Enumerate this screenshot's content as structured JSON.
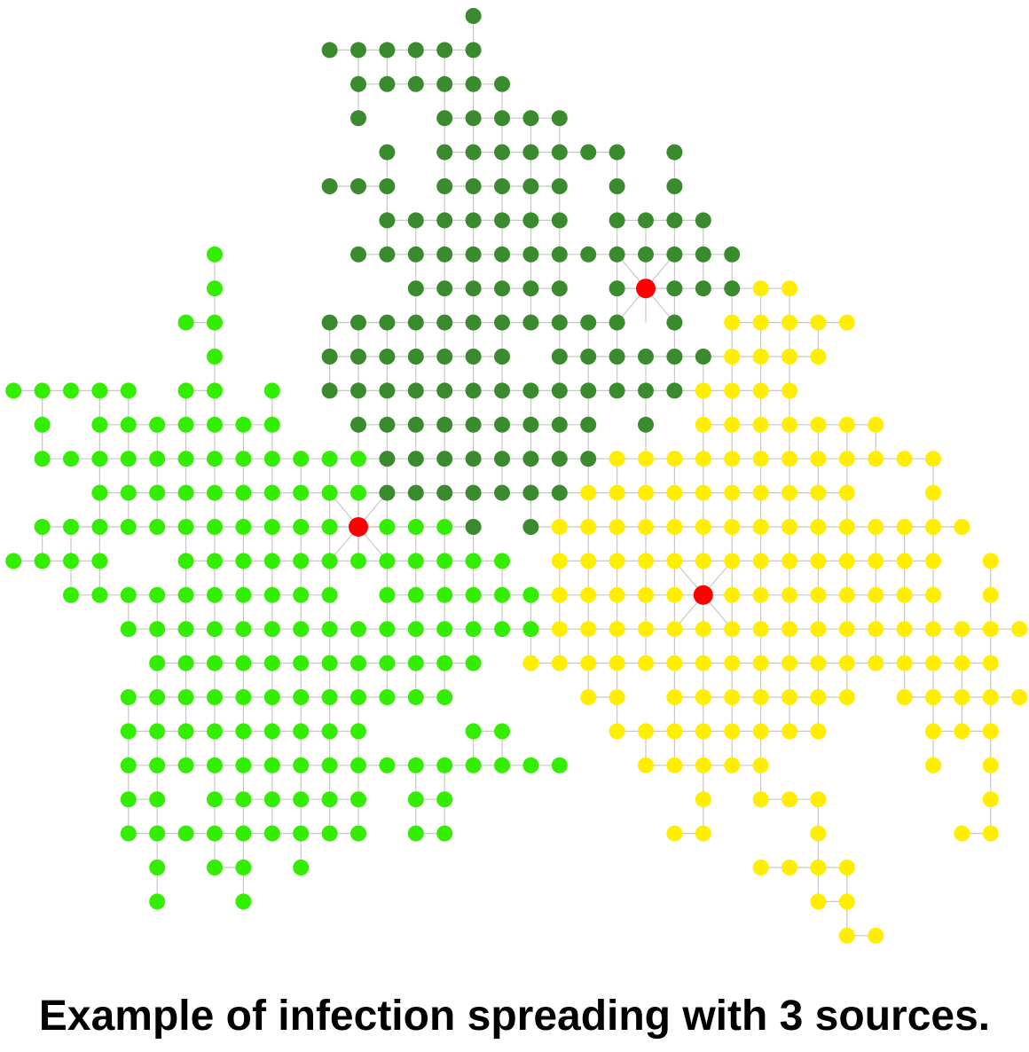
{
  "caption": "Example of infection spreading with 3 sources.",
  "colors": {
    "source": "#ff0000",
    "cluster_dark_green": "#3a8a2e",
    "cluster_light_green": "#33ee00",
    "cluster_yellow": "#ffee00",
    "edge": "#c8c8c8"
  },
  "clusters": [
    {
      "color_key": "cluster_dark_green",
      "source": [
        8,
        10
      ],
      "rows": {
        "0": [
          4
        ],
        "1": [
          -1,
          0,
          1,
          2,
          3,
          4
        ],
        "2": [
          0,
          1,
          2,
          3,
          4,
          5
        ],
        "3": [
          0,
          3,
          4,
          5,
          6,
          7
        ],
        "4": [
          1,
          3,
          4,
          5,
          6,
          7,
          8,
          9,
          11
        ],
        "5": [
          -1,
          0,
          1,
          3,
          4,
          5,
          6,
          7,
          9,
          11
        ],
        "6": [
          1,
          2,
          3,
          4,
          5,
          6,
          7,
          9,
          10,
          11,
          12
        ],
        "7": [
          0,
          1,
          2,
          3,
          4,
          5,
          6,
          7,
          8,
          9,
          10,
          11,
          12,
          13
        ],
        "8": [
          2,
          3,
          4,
          5,
          6,
          7,
          9,
          10,
          11,
          12,
          13
        ],
        "9": [
          -1,
          0,
          1,
          2,
          3,
          4,
          5,
          6,
          7,
          8,
          9,
          11
        ],
        "10": [
          -1,
          0,
          1,
          2,
          3,
          4,
          5,
          7,
          8,
          9,
          10,
          11,
          12
        ],
        "11": [
          -1,
          0,
          1,
          2,
          3,
          4,
          5,
          6,
          7,
          8,
          9,
          10,
          11
        ],
        "12": [
          0,
          1,
          2,
          3,
          4,
          5,
          6,
          7,
          8,
          10
        ],
        "13": [
          1,
          2,
          3,
          4,
          5,
          6,
          7,
          8
        ],
        "14": [
          1,
          2,
          3,
          4,
          5,
          6,
          7
        ],
        "15": [
          3,
          4,
          6
        ]
      }
    },
    {
      "color_key": "cluster_light_green",
      "source": [
        15,
        0
      ],
      "rows": {
        "7": [
          -5
        ],
        "8": [
          -5
        ],
        "9": [
          -6,
          -5
        ],
        "10": [
          -5
        ],
        "11": [
          -12,
          -11,
          -10,
          -9,
          -8,
          -6,
          -5,
          -3
        ],
        "12": [
          -11,
          -9,
          -8,
          -7,
          -6,
          -5,
          -4,
          -3
        ],
        "13": [
          -11,
          -10,
          -9,
          -8,
          -7,
          -6,
          -5,
          -4,
          -3,
          -2,
          -1,
          0
        ],
        "14": [
          -9,
          -8,
          -7,
          -6,
          -5,
          -4,
          -3,
          -2,
          -1,
          0
        ],
        "15": [
          -11,
          -10,
          -9,
          -8,
          -7,
          -6,
          -5,
          -4,
          -3,
          -2,
          -1,
          0,
          1,
          2,
          3
        ],
        "16": [
          -12,
          -11,
          -10,
          -9,
          -6,
          -5,
          -4,
          -3,
          -2,
          -1,
          0,
          1,
          2,
          3,
          4,
          5
        ],
        "17": [
          -10,
          -9,
          -8,
          -7,
          -6,
          -5,
          -4,
          -3,
          -2,
          -1,
          1,
          2,
          3,
          4,
          5,
          6
        ],
        "18": [
          -8,
          -7,
          -6,
          -5,
          -4,
          -3,
          -2,
          -1,
          0,
          1,
          2,
          3,
          4,
          5,
          6
        ],
        "19": [
          -7,
          -6,
          -5,
          -4,
          -3,
          -2,
          -1,
          0,
          1,
          2,
          3,
          4
        ],
        "20": [
          -8,
          -7,
          -6,
          -5,
          -4,
          -3,
          -2,
          -1,
          0,
          1,
          2,
          3
        ],
        "21": [
          -8,
          -7,
          -6,
          -5,
          -4,
          -3,
          -2,
          -1,
          0,
          4,
          5
        ],
        "22": [
          -8,
          -7,
          -6,
          -5,
          -4,
          -3,
          -2,
          -1,
          0,
          1,
          2,
          3,
          4,
          5,
          6,
          7
        ],
        "23": [
          -8,
          -7,
          -5,
          -4,
          -3,
          -2,
          -1,
          0,
          2,
          3
        ],
        "24": [
          -8,
          -7,
          -6,
          -5,
          -4,
          -3,
          -2,
          -1,
          0,
          2,
          3
        ],
        "25": [
          -7,
          -5,
          -4,
          -2
        ],
        "26": [
          -7,
          -4
        ]
      }
    },
    {
      "color_key": "cluster_yellow",
      "source": [
        17,
        12
      ],
      "rows": {
        "8": [
          14,
          15
        ],
        "9": [
          13,
          14,
          15,
          16,
          17
        ],
        "10": [
          13,
          14,
          15,
          16
        ],
        "11": [
          12,
          13,
          14,
          15
        ],
        "12": [
          12,
          13,
          14,
          15,
          16,
          17,
          18
        ],
        "13": [
          9,
          10,
          11,
          12,
          13,
          14,
          15,
          16,
          17,
          18,
          19,
          20
        ],
        "14": [
          8,
          9,
          10,
          11,
          12,
          13,
          14,
          15,
          16,
          17,
          20
        ],
        "15": [
          7,
          8,
          9,
          10,
          11,
          12,
          13,
          14,
          15,
          16,
          17,
          18,
          19,
          20,
          21
        ],
        "16": [
          7,
          8,
          9,
          10,
          11,
          12,
          13,
          14,
          15,
          16,
          17,
          18,
          19,
          20,
          22
        ],
        "17": [
          7,
          8,
          9,
          10,
          11,
          13,
          14,
          15,
          16,
          17,
          18,
          19,
          20,
          22
        ],
        "18": [
          7,
          8,
          9,
          10,
          11,
          12,
          13,
          14,
          15,
          16,
          17,
          18,
          19,
          20,
          21,
          22,
          23,
          24
        ],
        "19": [
          6,
          7,
          8,
          9,
          10,
          11,
          12,
          13,
          14,
          15,
          16,
          17,
          18,
          19,
          20,
          21,
          22
        ],
        "20": [
          8,
          9,
          11,
          12,
          13,
          14,
          15,
          16,
          17,
          19,
          20,
          21,
          22,
          23
        ],
        "21": [
          9,
          10,
          11,
          12,
          13,
          14,
          15,
          16,
          20,
          21,
          22
        ],
        "22": [
          10,
          11,
          12,
          13,
          14,
          20,
          22
        ],
        "23": [
          12,
          14,
          15,
          16,
          22
        ],
        "24": [
          11,
          12,
          16,
          21,
          22
        ],
        "25": [
          14,
          15,
          16,
          17
        ],
        "26": [
          16,
          17
        ],
        "27": [
          17,
          18
        ]
      }
    }
  ]
}
